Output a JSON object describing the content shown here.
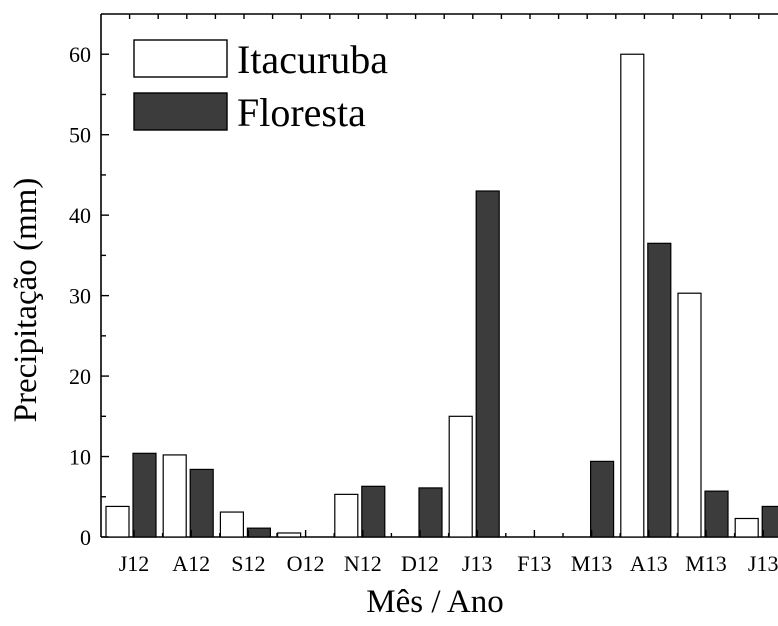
{
  "chart_data": {
    "type": "bar",
    "xlabel": "Mês / Ano",
    "ylabel": "Precipitação (mm)",
    "ylim": [
      0,
      65
    ],
    "yticks": [
      0,
      10,
      20,
      30,
      40,
      50,
      60
    ],
    "categories": [
      "J12",
      "A12",
      "S12",
      "O12",
      "N12",
      "D12",
      "J13",
      "F13",
      "M13",
      "A13",
      "M13",
      "J13"
    ],
    "series": [
      {
        "name": "Itacuruba",
        "color": "#ffffff",
        "values": [
          3.8,
          10.2,
          3.1,
          0.5,
          5.3,
          0,
          15.0,
          0,
          0,
          60.0,
          30.3,
          2.3
        ]
      },
      {
        "name": "Floresta",
        "color": "#3c3c3c",
        "values": [
          10.4,
          8.4,
          1.1,
          0,
          6.3,
          6.1,
          43.0,
          0,
          9.4,
          36.5,
          5.7,
          3.8
        ]
      }
    ],
    "legend_position": "top-left",
    "grid": false
  }
}
